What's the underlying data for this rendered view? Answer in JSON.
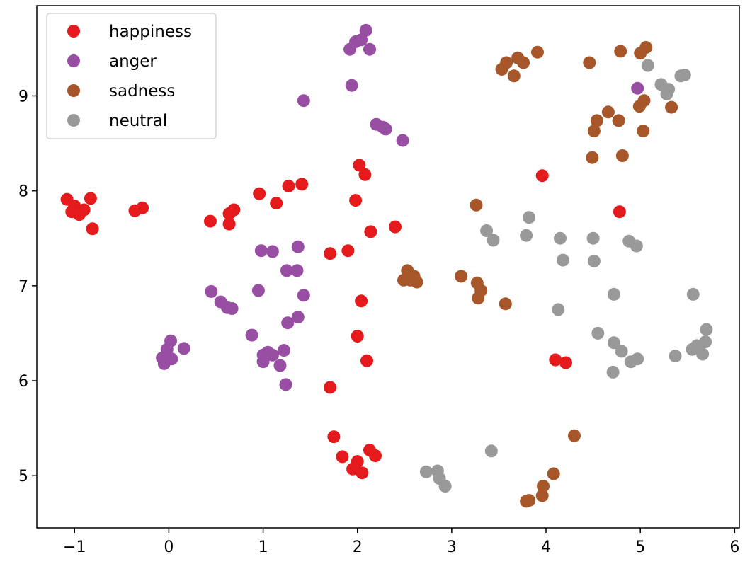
{
  "chart_data": {
    "type": "scatter",
    "title": "",
    "xlabel": "",
    "ylabel": "",
    "xlim": [
      -1.4,
      6.05
    ],
    "ylim": [
      4.45,
      9.95
    ],
    "xticks": [
      -1,
      0,
      1,
      2,
      3,
      4,
      5,
      6
    ],
    "xtick_labels": [
      "−1",
      "0",
      "1",
      "2",
      "3",
      "4",
      "5",
      "6"
    ],
    "yticks": [
      5,
      6,
      7,
      8,
      9
    ],
    "ytick_labels": [
      "5",
      "6",
      "7",
      "8",
      "9"
    ],
    "grid": false,
    "legend": {
      "position": "top-left"
    },
    "series": [
      {
        "name": "happiness",
        "color": "#e41a1c",
        "points": [
          [
            -1.08,
            7.91
          ],
          [
            -1.0,
            7.84
          ],
          [
            -1.03,
            7.78
          ],
          [
            -0.95,
            7.75
          ],
          [
            -0.9,
            7.8
          ],
          [
            -0.83,
            7.92
          ],
          [
            -0.81,
            7.6
          ],
          [
            -0.36,
            7.79
          ],
          [
            -0.28,
            7.82
          ],
          [
            0.44,
            7.68
          ],
          [
            0.64,
            7.76
          ],
          [
            0.69,
            7.8
          ],
          [
            0.64,
            7.65
          ],
          [
            0.96,
            7.97
          ],
          [
            1.14,
            7.87
          ],
          [
            1.27,
            8.05
          ],
          [
            1.41,
            8.07
          ],
          [
            1.71,
            7.34
          ],
          [
            1.9,
            7.37
          ],
          [
            1.98,
            7.9
          ],
          [
            2.02,
            8.27
          ],
          [
            2.08,
            8.17
          ],
          [
            2.14,
            7.57
          ],
          [
            2.4,
            7.62
          ],
          [
            2.04,
            6.84
          ],
          [
            2.0,
            6.47
          ],
          [
            2.1,
            6.21
          ],
          [
            1.71,
            5.93
          ],
          [
            1.75,
            5.41
          ],
          [
            1.84,
            5.2
          ],
          [
            1.95,
            5.07
          ],
          [
            2.0,
            5.15
          ],
          [
            2.05,
            5.03
          ],
          [
            2.13,
            5.27
          ],
          [
            2.19,
            5.21
          ],
          [
            3.96,
            8.16
          ],
          [
            4.78,
            7.78
          ],
          [
            4.1,
            6.22
          ],
          [
            4.21,
            6.19
          ]
        ]
      },
      {
        "name": "anger",
        "color": "#984ea3",
        "points": [
          [
            1.92,
            9.49
          ],
          [
            1.98,
            9.57
          ],
          [
            2.04,
            9.59
          ],
          [
            2.09,
            9.69
          ],
          [
            2.13,
            9.49
          ],
          [
            1.94,
            9.11
          ],
          [
            1.43,
            8.95
          ],
          [
            2.2,
            8.7
          ],
          [
            2.27,
            8.67
          ],
          [
            2.3,
            8.65
          ],
          [
            2.48,
            8.53
          ],
          [
            0.98,
            7.37
          ],
          [
            1.1,
            7.36
          ],
          [
            1.37,
            7.41
          ],
          [
            1.25,
            7.16
          ],
          [
            1.36,
            7.16
          ],
          [
            0.45,
            6.94
          ],
          [
            0.55,
            6.83
          ],
          [
            0.62,
            6.77
          ],
          [
            0.67,
            6.76
          ],
          [
            0.95,
            6.95
          ],
          [
            1.43,
            6.9
          ],
          [
            1.37,
            6.67
          ],
          [
            1.26,
            6.61
          ],
          [
            0.88,
            6.48
          ],
          [
            1.0,
            6.27
          ],
          [
            1.05,
            6.3
          ],
          [
            1.1,
            6.27
          ],
          [
            1.22,
            6.32
          ],
          [
            1.0,
            6.2
          ],
          [
            1.18,
            6.16
          ],
          [
            1.24,
            5.96
          ],
          [
            0.02,
            6.42
          ],
          [
            -0.02,
            6.33
          ],
          [
            -0.07,
            6.24
          ],
          [
            0.03,
            6.23
          ],
          [
            -0.05,
            6.18
          ],
          [
            0.16,
            6.34
          ],
          [
            4.97,
            9.08
          ]
        ]
      },
      {
        "name": "sadness",
        "color": "#a65628",
        "points": [
          [
            3.53,
            9.28
          ],
          [
            3.58,
            9.35
          ],
          [
            3.66,
            9.21
          ],
          [
            3.7,
            9.4
          ],
          [
            3.76,
            9.35
          ],
          [
            3.91,
            9.46
          ],
          [
            4.46,
            9.35
          ],
          [
            4.79,
            9.47
          ],
          [
            5.0,
            9.45
          ],
          [
            5.06,
            9.51
          ],
          [
            4.51,
            8.63
          ],
          [
            4.54,
            8.74
          ],
          [
            4.66,
            8.83
          ],
          [
            4.77,
            8.74
          ],
          [
            4.99,
            8.89
          ],
          [
            5.04,
            8.95
          ],
          [
            5.33,
            8.88
          ],
          [
            5.03,
            8.63
          ],
          [
            4.49,
            8.35
          ],
          [
            4.81,
            8.37
          ],
          [
            3.26,
            7.85
          ],
          [
            2.49,
            7.06
          ],
          [
            2.53,
            7.16
          ],
          [
            2.6,
            7.1
          ],
          [
            2.56,
            7.06
          ],
          [
            2.63,
            7.04
          ],
          [
            3.1,
            7.1
          ],
          [
            3.27,
            7.03
          ],
          [
            3.31,
            6.95
          ],
          [
            3.28,
            6.87
          ],
          [
            3.57,
            6.81
          ],
          [
            4.3,
            5.42
          ],
          [
            4.08,
            5.02
          ],
          [
            3.97,
            4.89
          ],
          [
            3.96,
            4.79
          ],
          [
            3.82,
            4.74
          ],
          [
            3.79,
            4.73
          ]
        ]
      },
      {
        "name": "neutral",
        "color": "#999999",
        "points": [
          [
            5.08,
            9.32
          ],
          [
            5.22,
            9.12
          ],
          [
            5.28,
            9.02
          ],
          [
            5.3,
            9.07
          ],
          [
            5.43,
            9.21
          ],
          [
            5.47,
            9.22
          ],
          [
            3.82,
            7.72
          ],
          [
            3.79,
            7.53
          ],
          [
            3.37,
            7.58
          ],
          [
            3.44,
            7.48
          ],
          [
            4.15,
            7.5
          ],
          [
            4.5,
            7.5
          ],
          [
            4.88,
            7.47
          ],
          [
            4.96,
            7.42
          ],
          [
            4.18,
            7.27
          ],
          [
            4.51,
            7.26
          ],
          [
            4.72,
            6.91
          ],
          [
            4.13,
            6.75
          ],
          [
            5.56,
            6.91
          ],
          [
            4.55,
            6.5
          ],
          [
            4.72,
            6.4
          ],
          [
            4.8,
            6.31
          ],
          [
            4.9,
            6.2
          ],
          [
            4.97,
            6.23
          ],
          [
            4.71,
            6.09
          ],
          [
            5.37,
            6.26
          ],
          [
            5.55,
            6.33
          ],
          [
            5.6,
            6.37
          ],
          [
            5.66,
            6.28
          ],
          [
            5.69,
            6.41
          ],
          [
            5.7,
            6.54
          ],
          [
            3.42,
            5.26
          ],
          [
            2.73,
            5.04
          ],
          [
            2.85,
            5.05
          ],
          [
            2.87,
            4.97
          ],
          [
            2.93,
            4.89
          ]
        ]
      }
    ]
  }
}
